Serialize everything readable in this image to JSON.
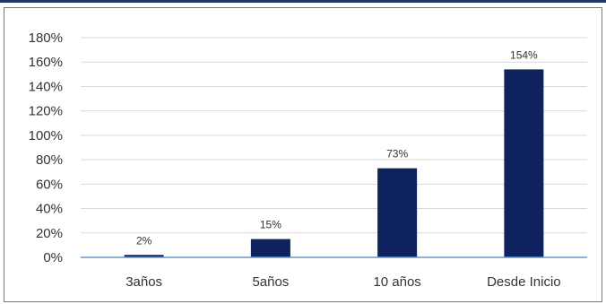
{
  "chart_data": {
    "type": "bar",
    "categories": [
      "3años",
      "5años",
      "10 años",
      "Desde Inicio"
    ],
    "values": [
      2,
      15,
      73,
      154
    ],
    "data_labels": [
      "2%",
      "15%",
      "73%",
      "154%"
    ],
    "y_ticks": [
      "0%",
      "20%",
      "40%",
      "60%",
      "80%",
      "100%",
      "120%",
      "140%",
      "160%",
      "180%"
    ],
    "ylim": [
      0,
      180
    ],
    "grid": true,
    "colors": {
      "bar": "#0f2260",
      "axis": "#5b9bd5",
      "grid": "#d9d9d9",
      "frame_top": "#1f3864"
    }
  }
}
